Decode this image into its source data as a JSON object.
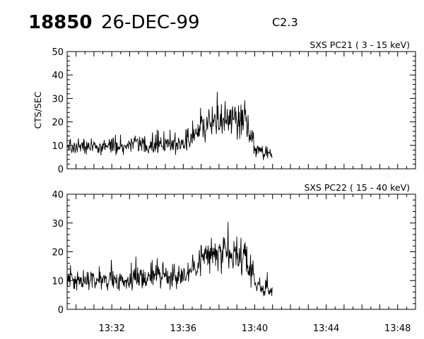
{
  "header": {
    "event_number": "18850",
    "date": "26-DEC-99",
    "flare_class": "C2.3"
  },
  "chart_data": [
    {
      "type": "line",
      "title": "SXS PC21  ( 3 - 15 keV)",
      "ylabel": "CTS/SEC",
      "xlabel": "",
      "xlim": [
        "13:29:30",
        "13:49:00"
      ],
      "ylim": [
        0,
        50
      ],
      "yticks": [
        0,
        10,
        20,
        30,
        40,
        50
      ],
      "xticks": [
        "13:32",
        "13:36",
        "13:40",
        "13:44",
        "13:48"
      ],
      "data_end": "13:41:00",
      "series": [
        {
          "x": [
            "13:29:30",
            "13:30:00",
            "13:30:30",
            "13:31:00",
            "13:31:30",
            "13:32:00",
            "13:32:30",
            "13:33:00",
            "13:33:30",
            "13:34:00",
            "13:34:30",
            "13:35:00",
            "13:35:30",
            "13:36:00",
            "13:36:30",
            "13:37:00",
            "13:37:30",
            "13:38:00",
            "13:38:30",
            "13:39:00",
            "13:39:30",
            "13:40:00",
            "13:40:30",
            "13:41:00"
          ],
          "y": [
            9,
            10,
            9,
            10,
            9,
            10,
            10,
            9,
            11,
            9,
            10,
            11,
            10,
            11,
            14,
            18,
            19,
            20,
            21,
            20,
            20,
            8,
            7,
            6
          ]
        }
      ]
    },
    {
      "type": "line",
      "title": "SXS PC22  ( 15 - 40 keV)",
      "ylabel": "",
      "xlabel": "",
      "xlim": [
        "13:29:30",
        "13:49:00"
      ],
      "ylim": [
        0,
        40
      ],
      "yticks": [
        0,
        10,
        20,
        30,
        40
      ],
      "xticks": [
        "13:32",
        "13:36",
        "13:40",
        "13:44",
        "13:48"
      ],
      "data_end": "13:41:00",
      "series": [
        {
          "x": [
            "13:29:30",
            "13:30:00",
            "13:30:30",
            "13:31:00",
            "13:31:30",
            "13:32:00",
            "13:32:30",
            "13:33:00",
            "13:33:30",
            "13:34:00",
            "13:34:30",
            "13:35:00",
            "13:35:30",
            "13:36:00",
            "13:36:30",
            "13:37:00",
            "13:37:30",
            "13:38:00",
            "13:38:30",
            "13:39:00",
            "13:39:30",
            "13:40:00",
            "13:40:30",
            "13:41:00"
          ],
          "y": [
            9,
            10,
            9,
            11,
            10,
            11,
            10,
            10,
            11,
            11,
            12,
            11,
            11,
            12,
            14,
            18,
            19,
            19,
            18,
            18,
            17,
            9,
            7,
            6
          ]
        }
      ]
    }
  ]
}
